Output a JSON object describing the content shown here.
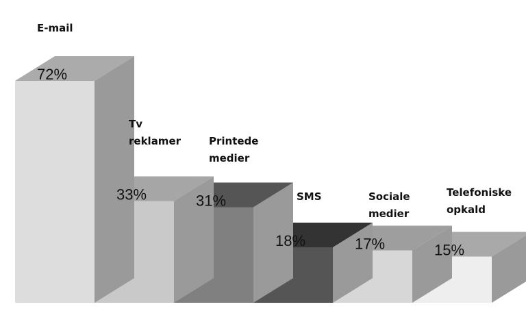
{
  "chart_data": {
    "type": "bar",
    "title": "",
    "xlabel": "",
    "ylabel": "",
    "categories": [
      "E-mail",
      "Tv reklamer",
      "Printede medier",
      "SMS",
      "Sociale medier",
      "Telefoniske opkald"
    ],
    "category_lines": [
      [
        "E-mail"
      ],
      [
        "Tv",
        "reklamer"
      ],
      [
        "Printede",
        "medier"
      ],
      [
        "SMS"
      ],
      [
        "Sociale",
        "medier"
      ],
      [
        "Telefoniske",
        "opkald"
      ]
    ],
    "values": [
      72,
      33,
      31,
      18,
      17,
      15
    ],
    "value_labels": [
      "72%",
      "33%",
      "31%",
      "18%",
      "17%",
      "15%"
    ],
    "ylim": [
      0,
      100
    ],
    "grid": false,
    "bar_colors": {
      "front": [
        "#dddddd",
        "#c9c9c9",
        "#808080",
        "#555555",
        "#d7d7d7",
        "#eeeeee"
      ],
      "top": [
        "#ababab",
        "#a6a6a6",
        "#555555",
        "#333333",
        "#9e9e9e",
        "#a9a9a9"
      ],
      "side": [
        "#9a9a9a",
        "#9a9a9a",
        "#9a9a9a",
        "#9a9a9a",
        "#9a9a9a",
        "#9a9a9a"
      ]
    }
  }
}
